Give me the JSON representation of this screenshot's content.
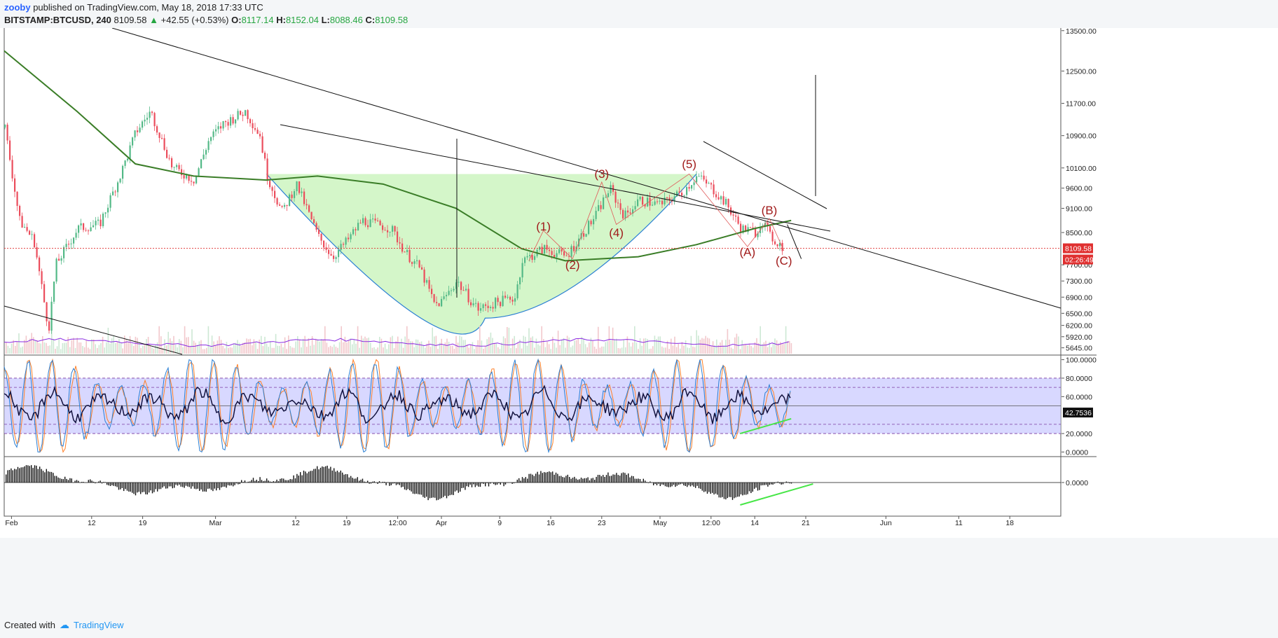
{
  "header": {
    "user": "zooby",
    "published": "published on TradingView.com, May 18, 2018 17:33 UTC",
    "symbol": "BITSTAMP:BTCUSD, 240",
    "last": "8109.58",
    "change_arrow": "▲",
    "change": "+42.55 (+0.53%)",
    "o_label": "O:",
    "o": "8117.14",
    "h_label": "H:",
    "h": "8152.04",
    "l_label": "L:",
    "l": "8088.46",
    "c_label": "C:",
    "c": "8109.58"
  },
  "footer": {
    "created_with": "Created with",
    "brand": "TradingView",
    "logo_icon": "cloud-icon"
  },
  "chart_data": [
    {
      "type": "candlestick",
      "panel": "price",
      "ylim": [
        5500,
        13600
      ],
      "yticks": [
        13500,
        12500,
        11700,
        10900,
        10100,
        9600,
        9100,
        8500,
        7700,
        7300,
        6900,
        6500,
        6200,
        5920,
        5645
      ],
      "ytick_labels": [
        "13500.00",
        "12500.00",
        "11700.00",
        "10900.00",
        "10100.00",
        "9600.00",
        "9100.00",
        "8500.00",
        "7700.00",
        "7300.00",
        "6900.00",
        "6500.00",
        "6200.00",
        "5920.00",
        "5645.00"
      ],
      "price_label": "8109.58",
      "countdown_label": "02:26:49",
      "current_price": 8109.58,
      "x_axis": {
        "start": "2018-01-31",
        "end": "2018-06-25"
      },
      "xticks": [
        {
          "date": "2018-02-01",
          "label": "Feb"
        },
        {
          "date": "2018-02-12",
          "label": "12"
        },
        {
          "date": "2018-02-19",
          "label": "19"
        },
        {
          "date": "2018-03-01",
          "label": "Mar"
        },
        {
          "date": "2018-03-12",
          "label": "12"
        },
        {
          "date": "2018-03-19",
          "label": "19"
        },
        {
          "date": "2018-03-26",
          "label": "12:00"
        },
        {
          "date": "2018-04-01",
          "label": "Apr"
        },
        {
          "date": "2018-04-09",
          "label": "9"
        },
        {
          "date": "2018-04-16",
          "label": "16"
        },
        {
          "date": "2018-04-23",
          "label": "23"
        },
        {
          "date": "2018-05-01",
          "label": "May"
        },
        {
          "date": "2018-05-08",
          "label": "12:00"
        },
        {
          "date": "2018-05-14",
          "label": "14"
        },
        {
          "date": "2018-05-21",
          "label": "21"
        },
        {
          "date": "2018-06-01",
          "label": "Jun"
        },
        {
          "date": "2018-06-11",
          "label": "11"
        },
        {
          "date": "2018-06-18",
          "label": "18"
        }
      ],
      "close_path": [
        [
          "2018-01-31",
          11100
        ],
        [
          "2018-02-02",
          8800
        ],
        [
          "2018-02-04",
          8300
        ],
        [
          "2018-02-06",
          6100
        ],
        [
          "2018-02-07",
          7700
        ],
        [
          "2018-02-10",
          8600
        ],
        [
          "2018-02-13",
          8700
        ],
        [
          "2018-02-16",
          10000
        ],
        [
          "2018-02-18",
          11000
        ],
        [
          "2018-02-20",
          11500
        ],
        [
          "2018-02-23",
          10100
        ],
        [
          "2018-02-26",
          9800
        ],
        [
          "2018-02-28",
          10800
        ],
        [
          "2018-03-02",
          11200
        ],
        [
          "2018-03-05",
          11500
        ],
        [
          "2018-03-07",
          10900
        ],
        [
          "2018-03-08",
          9900
        ],
        [
          "2018-03-10",
          9000
        ],
        [
          "2018-03-12",
          9700
        ],
        [
          "2018-03-15",
          8400
        ],
        [
          "2018-03-17",
          7900
        ],
        [
          "2018-03-19",
          8300
        ],
        [
          "2018-03-21",
          8800
        ],
        [
          "2018-03-23",
          8700
        ],
        [
          "2018-03-25",
          8600
        ],
        [
          "2018-03-27",
          8000
        ],
        [
          "2018-03-29",
          7600
        ],
        [
          "2018-03-31",
          6700
        ],
        [
          "2018-04-01",
          6800
        ],
        [
          "2018-04-03",
          7300
        ],
        [
          "2018-04-05",
          6800
        ],
        [
          "2018-04-06",
          6600
        ],
        [
          "2018-04-09",
          6800
        ],
        [
          "2018-04-11",
          6900
        ],
        [
          "2018-04-12",
          7800
        ],
        [
          "2018-04-15",
          8100
        ],
        [
          "2018-04-18",
          7900
        ],
        [
          "2018-04-20",
          8400
        ],
        [
          "2018-04-22",
          8900
        ],
        [
          "2018-04-24",
          9600
        ],
        [
          "2018-04-26",
          8900
        ],
        [
          "2018-04-28",
          9300
        ],
        [
          "2018-05-01",
          9200
        ],
        [
          "2018-05-04",
          9500
        ],
        [
          "2018-05-06",
          9900
        ],
        [
          "2018-05-08",
          9600
        ],
        [
          "2018-05-10",
          9200
        ],
        [
          "2018-05-12",
          8600
        ],
        [
          "2018-05-14",
          8500
        ],
        [
          "2018-05-15",
          8800
        ],
        [
          "2018-05-16",
          8400
        ],
        [
          "2018-05-18",
          8109.58
        ]
      ],
      "ma_path": [
        [
          "2018-01-31",
          13000
        ],
        [
          "2018-02-10",
          11500
        ],
        [
          "2018-02-18",
          10200
        ],
        [
          "2018-02-26",
          9900
        ],
        [
          "2018-03-08",
          9800
        ],
        [
          "2018-03-15",
          9900
        ],
        [
          "2018-03-24",
          9700
        ],
        [
          "2018-04-03",
          9100
        ],
        [
          "2018-04-12",
          8100
        ],
        [
          "2018-04-18",
          7800
        ],
        [
          "2018-04-28",
          7900
        ],
        [
          "2018-05-06",
          8200
        ],
        [
          "2018-05-14",
          8600
        ],
        [
          "2018-05-19",
          8800
        ]
      ],
      "annotations": [
        {
          "label": "(1)",
          "date": "2018-04-15",
          "price": 8550
        },
        {
          "label": "(2)",
          "date": "2018-04-19",
          "price": 7600
        },
        {
          "label": "(3)",
          "date": "2018-04-23",
          "price": 9850
        },
        {
          "label": "(4)",
          "date": "2018-04-25",
          "price": 8400
        },
        {
          "label": "(5)",
          "date": "2018-05-05",
          "price": 10100
        },
        {
          "label": "(A)",
          "date": "2018-05-13",
          "price": 7920
        },
        {
          "label": "(B)",
          "date": "2018-05-16",
          "price": 8950
        },
        {
          "label": "(C)",
          "date": "2018-05-18",
          "price": 7700
        }
      ],
      "volume_band": [
        5500,
        6250
      ]
    },
    {
      "type": "line",
      "panel": "stochastic_rsi",
      "ylim": [
        -5,
        105
      ],
      "yticks": [
        100,
        80,
        60,
        20,
        0
      ],
      "ytick_labels": [
        "100.0000",
        "80.0000",
        "60.0000",
        "20.0000",
        "0.0000"
      ],
      "band": [
        20,
        80
      ],
      "current_label": "42.7536",
      "current": 42.75
    },
    {
      "type": "histogram",
      "panel": "momentum",
      "yticks": [
        0
      ],
      "ytick_labels": [
        "0.0000"
      ]
    }
  ],
  "colors": {
    "up": "#53b987",
    "down": "#eb4d5c",
    "ma": "#3a7d27",
    "cup_fill": "#cdf5c0",
    "cup_curve": "#2a7fd4",
    "volume_avg": "#8a2be2",
    "stoch_k": "#2a7fd4",
    "stoch_d": "#ff7f27",
    "rsi": "#13133f",
    "wave_label": "#a01a1a",
    "rsi_band": "#c8c8ff",
    "divergence": "#46e646"
  }
}
